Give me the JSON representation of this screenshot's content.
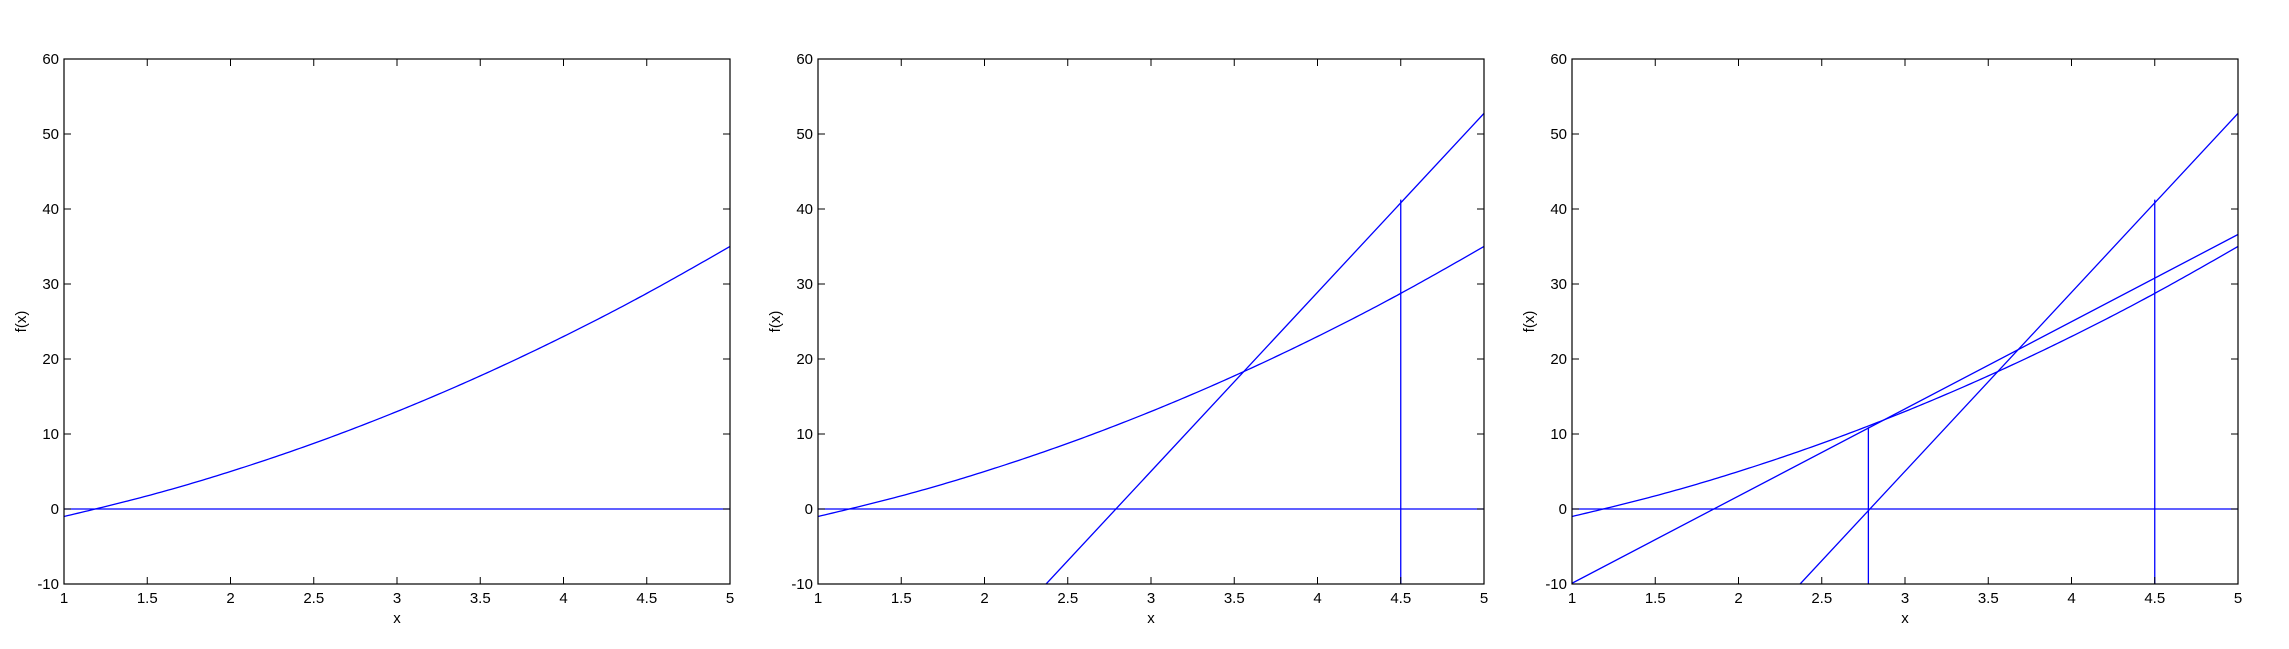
{
  "chart_data": [
    {
      "type": "line",
      "title": "",
      "xlabel": "x",
      "ylabel": "f(x)",
      "xlim": [
        1,
        5
      ],
      "ylim": [
        -10,
        60
      ],
      "xticks": [
        "1",
        "1.5",
        "2",
        "2.5",
        "3",
        "3.5",
        "4",
        "4.5",
        "5"
      ],
      "yticks": [
        "-10",
        "0",
        "10",
        "20",
        "30",
        "40",
        "50",
        "60"
      ],
      "grid": false,
      "line_color": "#0000ff",
      "series": [
        {
          "kind": "curve",
          "x": [
            1,
            1.5,
            2,
            2.5,
            3,
            3.5,
            4,
            4.5,
            5
          ],
          "y": [
            -1,
            1.75,
            5,
            8.75,
            13,
            17.75,
            23,
            28.75,
            35
          ]
        },
        {
          "kind": "line",
          "x": [
            1,
            5
          ],
          "y": [
            0,
            0
          ]
        }
      ]
    },
    {
      "type": "line",
      "title": "",
      "xlabel": "x",
      "ylabel": "f(x)",
      "xlim": [
        1,
        5
      ],
      "ylim": [
        -10,
        60
      ],
      "xticks": [
        "1",
        "1.5",
        "2",
        "2.5",
        "3",
        "3.5",
        "4",
        "4.5",
        "5"
      ],
      "yticks": [
        "-10",
        "0",
        "10",
        "20",
        "30",
        "40",
        "50",
        "60"
      ],
      "grid": false,
      "line_color": "#0000ff",
      "series": [
        {
          "kind": "curve",
          "x": [
            1,
            1.5,
            2,
            2.5,
            3,
            3.5,
            4,
            4.5,
            5
          ],
          "y": [
            -1,
            1.75,
            5,
            8.75,
            13,
            17.75,
            23,
            28.75,
            35
          ]
        },
        {
          "kind": "line",
          "x": [
            1,
            5
          ],
          "y": [
            0,
            0
          ]
        },
        {
          "kind": "line",
          "x": [
            2.37,
            5
          ],
          "y": [
            -10,
            52.75
          ]
        },
        {
          "kind": "line",
          "x": [
            4.5,
            4.5
          ],
          "y": [
            -10,
            41.25
          ]
        }
      ]
    },
    {
      "type": "line",
      "title": "",
      "xlabel": "x",
      "ylabel": "f(x)",
      "xlim": [
        1,
        5
      ],
      "ylim": [
        -10,
        60
      ],
      "xticks": [
        "1",
        "1.5",
        "2",
        "2.5",
        "3",
        "3.5",
        "4",
        "4.5",
        "5"
      ],
      "yticks": [
        "-10",
        "0",
        "10",
        "20",
        "30",
        "40",
        "50",
        "60"
      ],
      "grid": false,
      "line_color": "#0000ff",
      "series": [
        {
          "kind": "curve",
          "x": [
            1,
            1.5,
            2,
            2.5,
            3,
            3.5,
            4,
            4.5,
            5
          ],
          "y": [
            -1,
            1.75,
            5,
            8.75,
            13,
            17.75,
            23,
            28.75,
            35
          ]
        },
        {
          "kind": "line",
          "x": [
            1,
            5
          ],
          "y": [
            0,
            0
          ]
        },
        {
          "kind": "line",
          "x": [
            2.37,
            5
          ],
          "y": [
            -10,
            52.75
          ]
        },
        {
          "kind": "line",
          "x": [
            4.5,
            4.5
          ],
          "y": [
            -10,
            41.25
          ]
        },
        {
          "kind": "line",
          "x": [
            1,
            5
          ],
          "y": [
            -9.9,
            36.6
          ]
        },
        {
          "kind": "line",
          "x": [
            2.78,
            2.78
          ],
          "y": [
            -10,
            10.9
          ]
        }
      ]
    }
  ]
}
